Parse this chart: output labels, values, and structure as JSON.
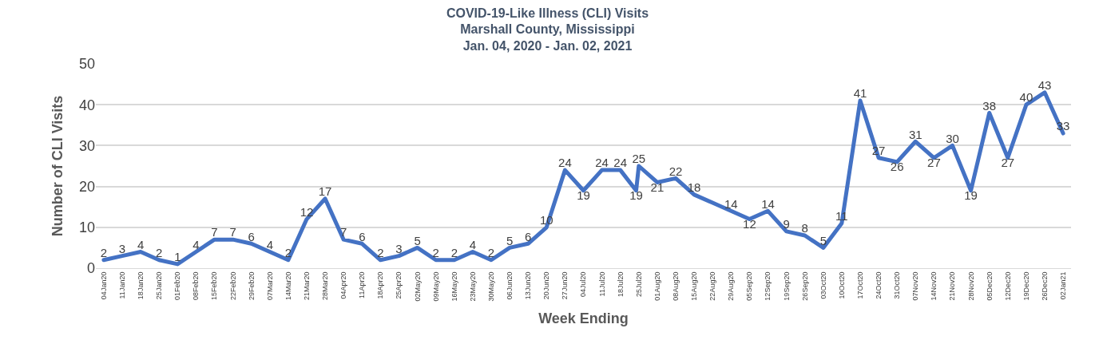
{
  "chart_data": {
    "type": "line",
    "title": "COVID-19-Like Illness (CLI) Visits\nMarshall County, Mississippi\nJan. 04, 2020 - Jan. 02, 2021",
    "xlabel": "Week Ending",
    "ylabel": "Number of CLI Visits",
    "x": [
      "2020-01-04",
      "2020-01-11",
      "2020-01-18",
      "2020-01-25",
      "2020-02-01",
      "2020-02-08",
      "2020-02-15",
      "2020-02-22",
      "2020-02-29",
      "2020-03-07",
      "2020-03-14",
      "2020-03-21",
      "2020-03-28",
      "2020-04-04",
      "2020-04-11",
      "2020-04-18",
      "2020-04-25",
      "2020-05-02",
      "2020-05-09",
      "2020-05-16",
      "2020-05-23",
      "2020-05-30",
      "2020-06-06",
      "2020-06-13",
      "2020-06-20",
      "2020-06-27",
      "2020-07-04",
      "2020-07-11",
      "2020-07-18",
      "2020-07-24",
      "2020-07-25",
      "2020-08-01",
      "2020-08-08",
      "2020-08-15",
      "2020-08-22",
      "2020-08-29",
      "2020-09-05",
      "2020-09-12",
      "2020-09-19",
      "2020-09-26",
      "2020-10-03",
      "2020-10-10",
      "2020-10-17",
      "2020-10-24",
      "2020-10-31",
      "2020-11-07",
      "2020-11-14",
      "2020-11-21",
      "2020-11-28",
      "2020-12-05",
      "2020-12-12",
      "2020-12-19",
      "2020-12-26",
      "2021-01-02"
    ],
    "series": [
      {
        "color": "#4472c4",
        "values": [
          2,
          3,
          4,
          2,
          1,
          4,
          7,
          7,
          6,
          4,
          2,
          12,
          17,
          7,
          6,
          2,
          3,
          5,
          2,
          2,
          4,
          2,
          5,
          6,
          10,
          24,
          19,
          24,
          24,
          19,
          25,
          21,
          22,
          18,
          16,
          14,
          12,
          14,
          9,
          8,
          5,
          11,
          41,
          27,
          26,
          31,
          27,
          30,
          19,
          38,
          27,
          40,
          43,
          33
        ],
        "value_labels": [
          "2",
          "3",
          "4",
          "2",
          "1",
          "4",
          "7",
          "7",
          "6",
          "4",
          "2",
          "12",
          "17",
          "7",
          "6",
          "2",
          "3",
          "5",
          "2",
          "2",
          "4",
          "2",
          "5",
          "6",
          "10",
          "24",
          "19",
          "24",
          "24",
          "19",
          "25",
          "21",
          "22",
          "18",
          null,
          "14",
          "12",
          "14",
          "9",
          "8",
          "5",
          "11",
          "41",
          "27",
          "26",
          "31",
          "27",
          "30",
          "19",
          "38",
          "27",
          "40",
          "43",
          "33"
        ]
      }
    ],
    "xlim": [
      "2020-01-01",
      "2021-01-05"
    ],
    "xticks": [
      {
        "value": "2020-01-04",
        "label": "04Jan20"
      },
      {
        "value": "2020-01-11",
        "label": "11Jan20"
      },
      {
        "value": "2020-01-18",
        "label": "18Jan20"
      },
      {
        "value": "2020-01-25",
        "label": "25Jan20"
      },
      {
        "value": "2020-02-01",
        "label": "01Feb20"
      },
      {
        "value": "2020-02-08",
        "label": "08Feb20"
      },
      {
        "value": "2020-02-15",
        "label": "15Feb20"
      },
      {
        "value": "2020-02-22",
        "label": "22Feb20"
      },
      {
        "value": "2020-02-29",
        "label": "29Feb20"
      },
      {
        "value": "2020-03-07",
        "label": "07Mar20"
      },
      {
        "value": "2020-03-14",
        "label": "14Mar20"
      },
      {
        "value": "2020-03-21",
        "label": "21Mar20"
      },
      {
        "value": "2020-03-28",
        "label": "28Mar20"
      },
      {
        "value": "2020-04-04",
        "label": "04Apr20"
      },
      {
        "value": "2020-04-11",
        "label": "11Apr20"
      },
      {
        "value": "2020-04-18",
        "label": "18Apr20"
      },
      {
        "value": "2020-04-25",
        "label": "25Apr20"
      },
      {
        "value": "2020-05-02",
        "label": "02May20"
      },
      {
        "value": "2020-05-09",
        "label": "09May20"
      },
      {
        "value": "2020-05-16",
        "label": "16May20"
      },
      {
        "value": "2020-05-23",
        "label": "23May20"
      },
      {
        "value": "2020-05-30",
        "label": "30May20"
      },
      {
        "value": "2020-06-06",
        "label": "06Jun20"
      },
      {
        "value": "2020-06-13",
        "label": "13Jun20"
      },
      {
        "value": "2020-06-20",
        "label": "20Jun20"
      },
      {
        "value": "2020-06-27",
        "label": "27Jun20"
      },
      {
        "value": "2020-07-04",
        "label": "04Jul20"
      },
      {
        "value": "2020-07-11",
        "label": "11Jul20"
      },
      {
        "value": "2020-07-18",
        "label": "18Jul20"
      },
      {
        "value": "2020-07-25",
        "label": "25Jul20"
      },
      {
        "value": "2020-08-01",
        "label": "01Aug20"
      },
      {
        "value": "2020-08-08",
        "label": "08Aug20"
      },
      {
        "value": "2020-08-15",
        "label": "15Aug20"
      },
      {
        "value": "2020-08-22",
        "label": "22Aug20"
      },
      {
        "value": "2020-08-29",
        "label": "29Aug20"
      },
      {
        "value": "2020-09-05",
        "label": "05Sep20"
      },
      {
        "value": "2020-09-12",
        "label": "12Sep20"
      },
      {
        "value": "2020-09-19",
        "label": "19Sep20"
      },
      {
        "value": "2020-09-26",
        "label": "26Sep20"
      },
      {
        "value": "2020-10-03",
        "label": "03Oct20"
      },
      {
        "value": "2020-10-10",
        "label": "10Oct20"
      },
      {
        "value": "2020-10-17",
        "label": "17Oct20"
      },
      {
        "value": "2020-10-24",
        "label": "24Oct20"
      },
      {
        "value": "2020-10-31",
        "label": "31Oct20"
      },
      {
        "value": "2020-11-07",
        "label": "07Nov20"
      },
      {
        "value": "2020-11-14",
        "label": "14Nov20"
      },
      {
        "value": "2020-11-21",
        "label": "21Nov20"
      },
      {
        "value": "2020-11-28",
        "label": "28Nov20"
      },
      {
        "value": "2020-12-05",
        "label": "05Dec20"
      },
      {
        "value": "2020-12-12",
        "label": "12Dec20"
      },
      {
        "value": "2020-12-19",
        "label": "19Dec20"
      },
      {
        "value": "2020-12-26",
        "label": "26Dec20"
      },
      {
        "value": "2021-01-02",
        "label": "02Jan21"
      }
    ],
    "ylim": [
      0,
      50
    ],
    "yticks": [
      0,
      10,
      20,
      30,
      40,
      50
    ],
    "grid": "y",
    "marker": "none",
    "line_style": "solid"
  }
}
